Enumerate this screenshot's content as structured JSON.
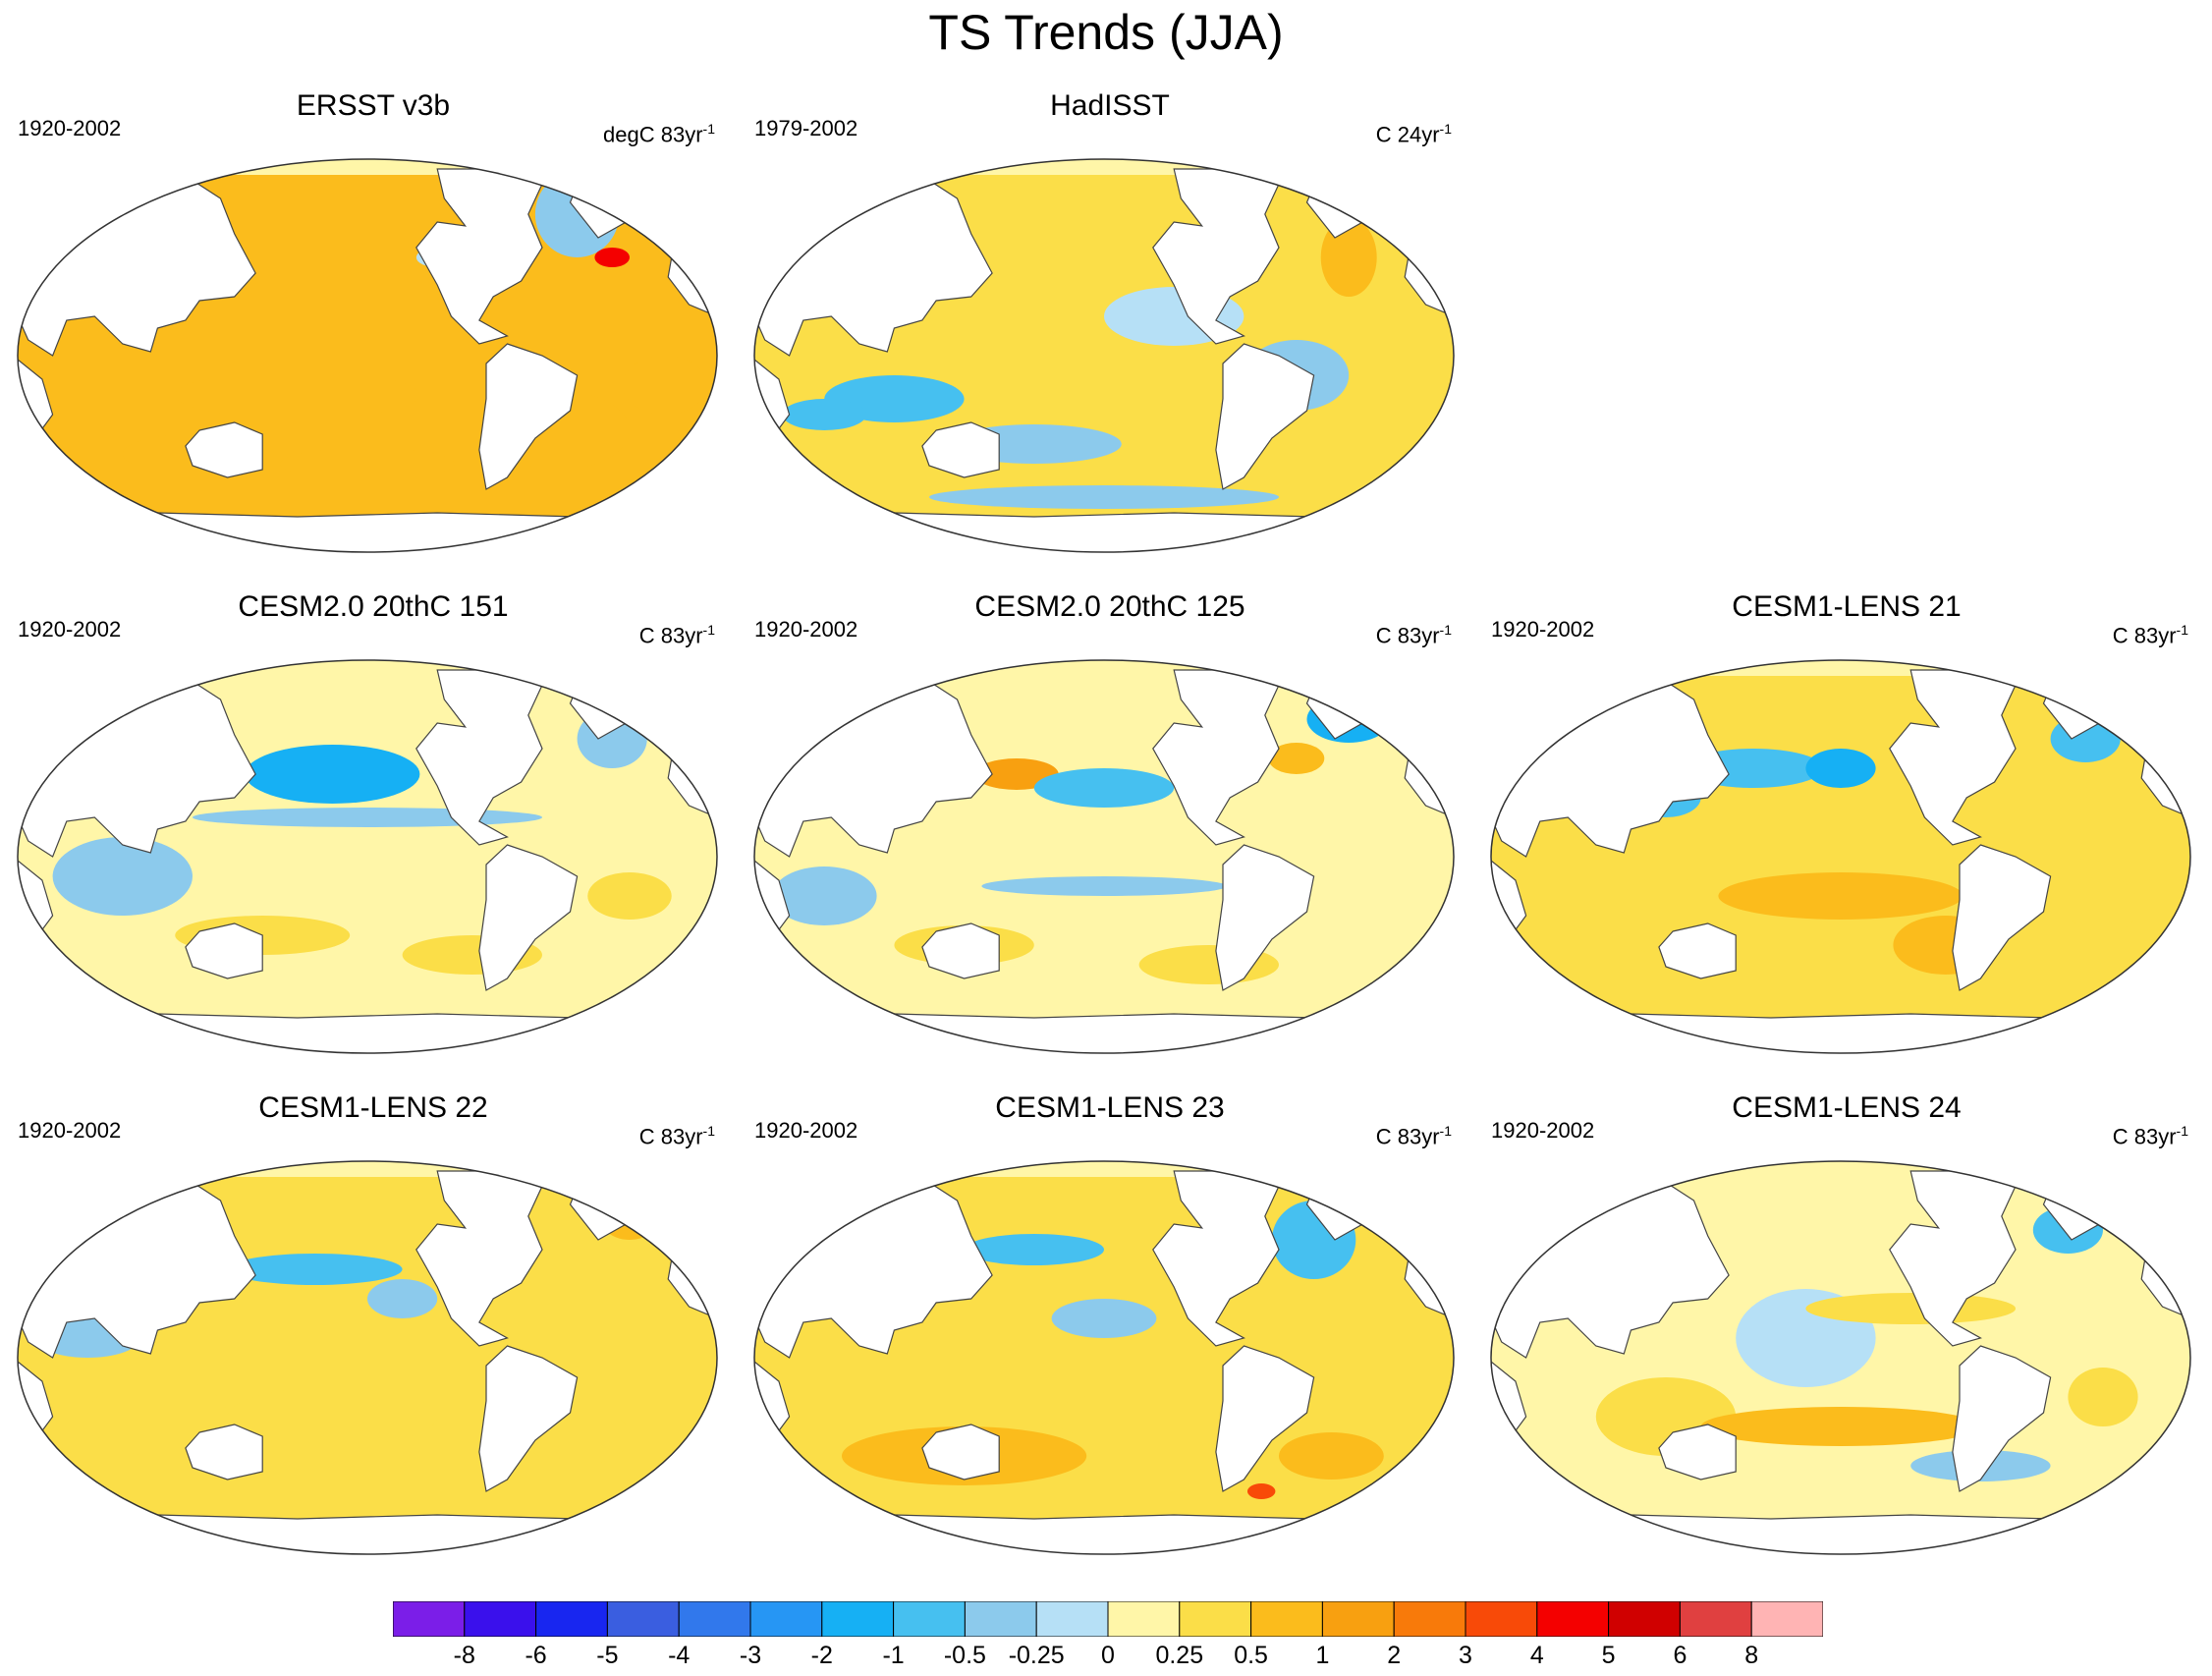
{
  "title": "TS Trends (JJA)",
  "chart_data": {
    "type": "heatmap",
    "projection": "Robinson (Pacific-centered global map)",
    "variable": "surface temperature trend",
    "season": "JJA",
    "colorbar": {
      "labels": [
        "-8",
        "-6",
        "-5",
        "-4",
        "-3",
        "-2",
        "-1",
        "-0.5",
        "-0.25",
        "0",
        "0.25",
        "0.5",
        "1",
        "2",
        "3",
        "4",
        "5",
        "6",
        "8"
      ],
      "colors": [
        "#7b1ee8",
        "#3a10ec",
        "#1826f0",
        "#3a5ee0",
        "#3178ec",
        "#2696f4",
        "#16b0f4",
        "#46c0f0",
        "#8ccaec",
        "#b6e0f6",
        "#fff6a8",
        "#fbde48",
        "#fbbc1c",
        "#f8a010",
        "#f87a0a",
        "#f84a08",
        "#f40000",
        "#d00000",
        "#e04040",
        "#ffb4b4"
      ]
    },
    "panels": [
      {
        "title": "ERSST v3b",
        "period": "1920-2002",
        "units_prefix": "degC 83yr",
        "units_exp": "-1",
        "pattern": "ersst"
      },
      {
        "title": "HadISST",
        "period": "1979-2002",
        "units_prefix": "C 24yr",
        "units_exp": "-1",
        "pattern": "hadisst"
      },
      {
        "title": "CESM2.0 20thC 151",
        "period": "1920-2002",
        "units_prefix": "C 83yr",
        "units_exp": "-1",
        "pattern": "cesm2a"
      },
      {
        "title": "CESM2.0 20thC 125",
        "period": "1920-2002",
        "units_prefix": "C 83yr",
        "units_exp": "-1",
        "pattern": "cesm2b"
      },
      {
        "title": "CESM1-LENS 21",
        "period": "1920-2002",
        "units_prefix": "C 83yr",
        "units_exp": "-1",
        "pattern": "lens21"
      },
      {
        "title": "CESM1-LENS 22",
        "period": "1920-2002",
        "units_prefix": "C 83yr",
        "units_exp": "-1",
        "pattern": "lens22"
      },
      {
        "title": "CESM1-LENS 23",
        "period": "1920-2002",
        "units_prefix": "C 83yr",
        "units_exp": "-1",
        "pattern": "lens23"
      },
      {
        "title": "CESM1-LENS 24",
        "period": "1920-2002",
        "units_prefix": "C 83yr",
        "units_exp": "-1",
        "pattern": "lens24"
      }
    ]
  }
}
